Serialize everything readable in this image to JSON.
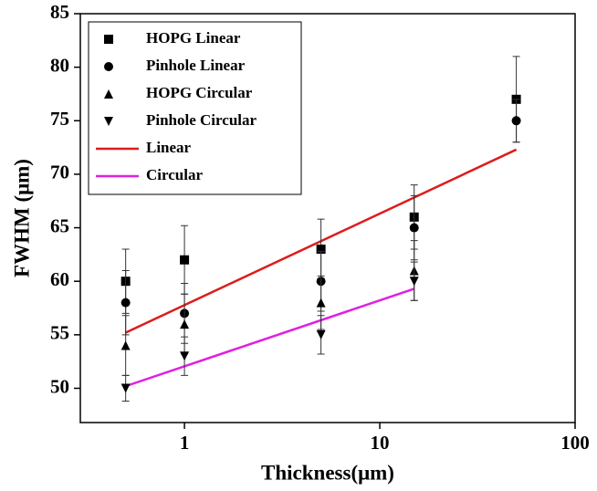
{
  "chart_data": {
    "type": "scatter",
    "xlabel": "Thickness(μm)",
    "ylabel": "FWHM (μm)",
    "xscale": "log",
    "xlim": [
      0.293,
      100
    ],
    "xticks": [
      1,
      10,
      100
    ],
    "ylim": [
      46.8,
      85
    ],
    "yticks": [
      50,
      55,
      60,
      65,
      70,
      75,
      80,
      85
    ],
    "legend": "upper left",
    "x": [
      0.5,
      1,
      5,
      15,
      50
    ],
    "series": [
      {
        "name": "HOPG Linear",
        "marker": "square",
        "color": "#000000",
        "values": [
          60,
          62,
          63,
          66,
          77
        ],
        "errors": [
          3,
          3.2,
          2.8,
          3,
          4
        ]
      },
      {
        "name": "Pinhole Linear",
        "marker": "circle",
        "color": "#000000",
        "values": [
          58,
          57,
          60,
          65,
          75
        ],
        "errors": [
          3,
          2.8,
          2.8,
          3,
          2
        ]
      },
      {
        "name": "HOPG Circular",
        "marker": "triangle-up",
        "color": "#000000",
        "values": [
          54,
          56,
          58,
          61,
          null
        ],
        "errors": [
          2.8,
          2.8,
          2.5,
          2.8,
          null
        ]
      },
      {
        "name": "Pinhole Circular",
        "marker": "triangle-down",
        "color": "#000000",
        "values": [
          50,
          53,
          55,
          60,
          null
        ],
        "errors": [
          1.2,
          1.8,
          1.8,
          1.8,
          null
        ]
      }
    ],
    "fits": [
      {
        "name": "Linear",
        "color": "#dd1c1c",
        "x": [
          0.5,
          50
        ],
        "values": [
          55.2,
          72.3
        ]
      },
      {
        "name": "Circular",
        "color": "#e020e0",
        "x": [
          0.5,
          15
        ],
        "values": [
          50.2,
          59.3
        ]
      }
    ]
  }
}
